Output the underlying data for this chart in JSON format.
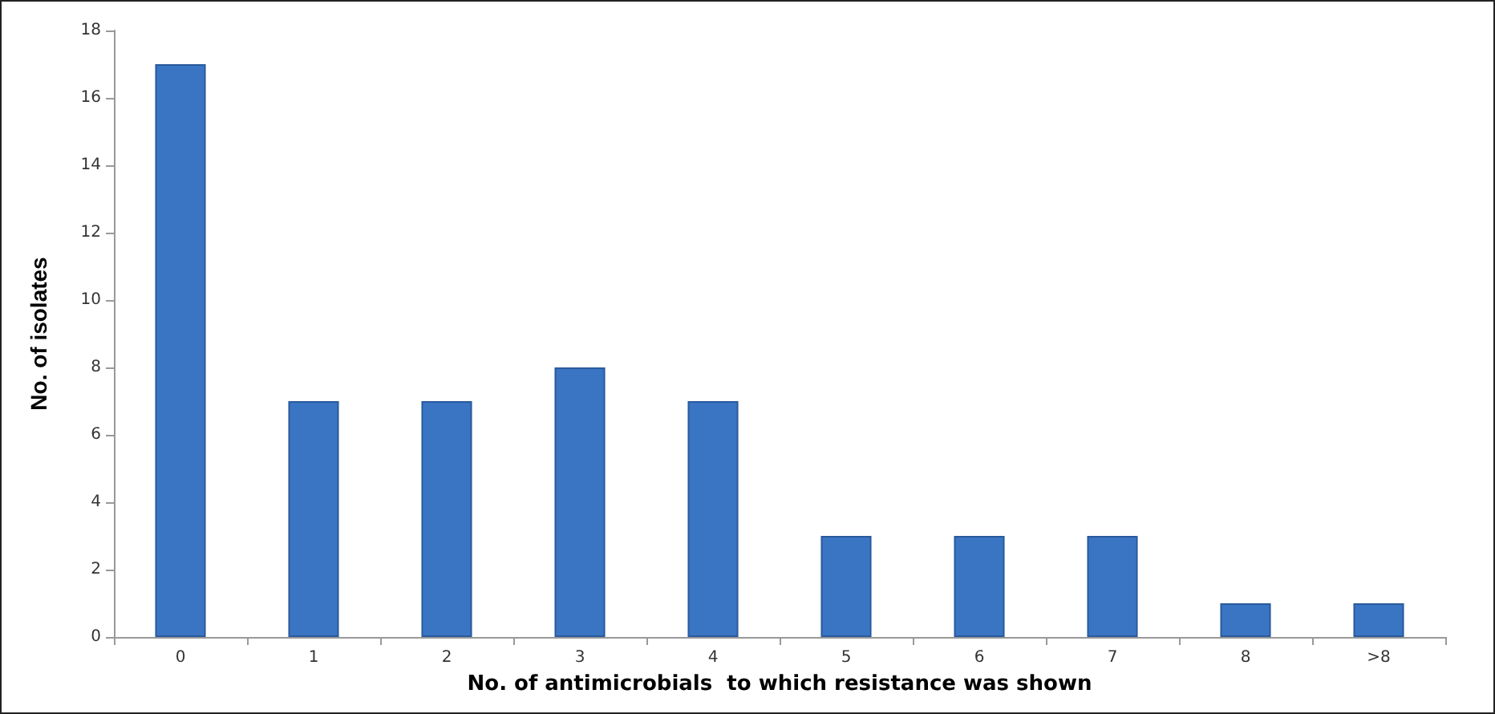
{
  "chart_data": {
    "type": "bar",
    "xlabel": "No. of antimicrobials  to which resistance was shown",
    "ylabel": "No. of isolates",
    "categories": [
      "0",
      "1",
      "2",
      "3",
      "4",
      "5",
      "6",
      "7",
      "8",
      ">8"
    ],
    "values": [
      17,
      7,
      7,
      8,
      7,
      3,
      3,
      3,
      1,
      1
    ],
    "color": "#3a75c4",
    "ylim": [
      0,
      18
    ],
    "yticks": [
      0,
      2,
      4,
      6,
      8,
      10,
      12,
      14,
      16,
      18
    ],
    "grid": false
  }
}
